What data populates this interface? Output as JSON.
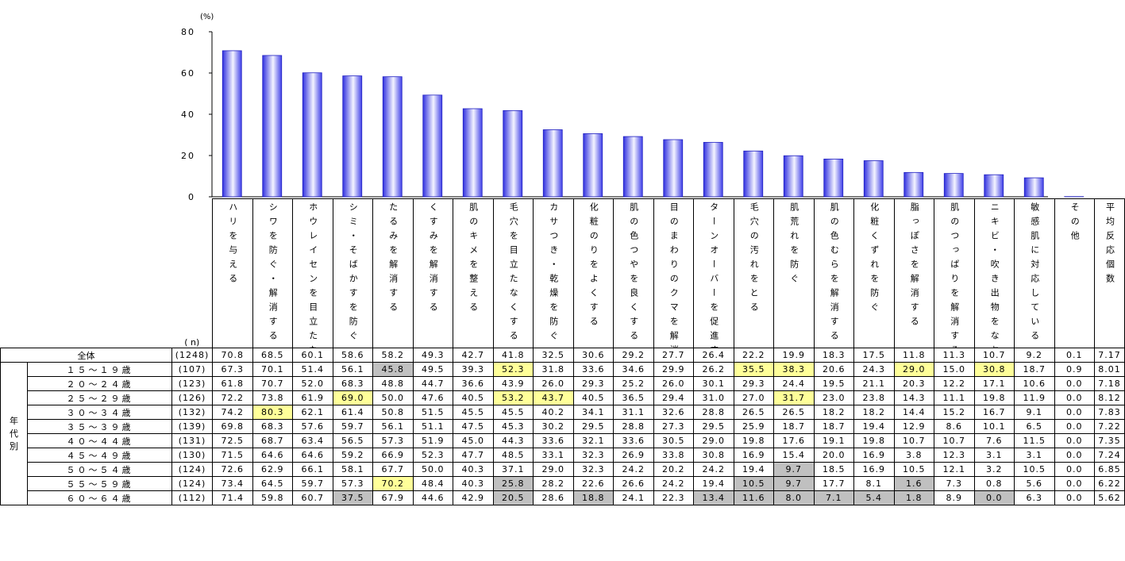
{
  "chart_data": {
    "type": "bar",
    "unit_label": "(%)",
    "yticks": [
      "80",
      "60",
      "40",
      "20",
      "0"
    ],
    "ylim": [
      0,
      80
    ],
    "n_label": "( n)",
    "categories": [
      "ハリを与える",
      "シワを防ぐ・解消する",
      "ホウレイセンを目立たなくする",
      "シミ・そばかすを防ぐ・解消する",
      "たるみを解消する",
      "くすみを解消する",
      "肌のキメを整える",
      "毛穴を目立たなくする",
      "カサつき・乾燥を防ぐ",
      "化粧のりをよくする",
      "肌の色つやを良くする",
      "目のまわりのクマを解消する",
      "ターンオーバーを促進する",
      "毛穴の汚れをとる",
      "肌荒れを防ぐ",
      "肌の色むらを解消する",
      "化粧くずれを防ぐ",
      "脂っぽさを解消する",
      "肌のつっぱりを解消する",
      "ニキビ・吹き出物をなおす",
      "敏感肌に対応している",
      "その他"
    ],
    "header_avg": "平均反応個数",
    "values": [
      70.8,
      68.5,
      60.1,
      58.6,
      58.2,
      49.3,
      42.7,
      41.8,
      32.5,
      30.6,
      29.2,
      27.7,
      26.4,
      22.2,
      19.9,
      18.3,
      17.5,
      11.8,
      11.3,
      10.7,
      9.2,
      0.1
    ],
    "table": {
      "total_label": "全体",
      "group_label": "年代別",
      "rows": [
        {
          "label": "全体",
          "n": "(1248)",
          "vals": [
            "70.8",
            "68.5",
            "60.1",
            "58.6",
            "58.2",
            "49.3",
            "42.7",
            "41.8",
            "32.5",
            "30.6",
            "29.2",
            "27.7",
            "26.4",
            "22.2",
            "19.9",
            "18.3",
            "17.5",
            "11.8",
            "11.3",
            "10.7",
            "9.2",
            "0.1",
            "7.17"
          ],
          "hl": "0000000000000000000000"
        },
        {
          "label": "１５～１９歳",
          "n": "(107)",
          "vals": [
            "67.3",
            "70.1",
            "51.4",
            "56.1",
            "45.8",
            "49.5",
            "39.3",
            "52.3",
            "31.8",
            "33.6",
            "34.6",
            "29.9",
            "26.2",
            "35.5",
            "38.3",
            "20.6",
            "24.3",
            "29.0",
            "15.0",
            "30.8",
            "18.7",
            "0.9",
            "8.01"
          ],
          "hl": "0000L00H00000HH00H0H00"
        },
        {
          "label": "２０～２４歳",
          "n": "(123)",
          "vals": [
            "61.8",
            "70.7",
            "52.0",
            "68.3",
            "48.8",
            "44.7",
            "36.6",
            "43.9",
            "26.0",
            "29.3",
            "25.2",
            "26.0",
            "30.1",
            "29.3",
            "24.4",
            "19.5",
            "21.1",
            "20.3",
            "12.2",
            "17.1",
            "10.6",
            "0.0",
            "7.18"
          ],
          "hl": "0000000000000000000000"
        },
        {
          "label": "２５～２９歳",
          "n": "(126)",
          "vals": [
            "72.2",
            "73.8",
            "61.9",
            "69.0",
            "50.0",
            "47.6",
            "40.5",
            "53.2",
            "43.7",
            "40.5",
            "36.5",
            "29.4",
            "31.0",
            "27.0",
            "31.7",
            "23.0",
            "23.8",
            "14.3",
            "11.1",
            "19.8",
            "11.9",
            "0.0",
            "8.12"
          ],
          "hl": "000H000HH00000H0000000"
        },
        {
          "label": "３０～３４歳",
          "n": "(132)",
          "vals": [
            "74.2",
            "80.3",
            "62.1",
            "61.4",
            "50.8",
            "51.5",
            "45.5",
            "45.5",
            "40.2",
            "34.1",
            "31.1",
            "32.6",
            "28.8",
            "26.5",
            "26.5",
            "18.2",
            "18.2",
            "14.4",
            "15.2",
            "16.7",
            "9.1",
            "0.0",
            "7.83"
          ],
          "hl": "0H00000000000000000000"
        },
        {
          "label": "３５～３９歳",
          "n": "(139)",
          "vals": [
            "69.8",
            "68.3",
            "57.6",
            "59.7",
            "56.1",
            "51.1",
            "47.5",
            "45.3",
            "30.2",
            "29.5",
            "28.8",
            "27.3",
            "29.5",
            "25.9",
            "18.7",
            "18.7",
            "19.4",
            "12.9",
            "8.6",
            "10.1",
            "6.5",
            "0.0",
            "7.22"
          ],
          "hl": "0000000000000000000000"
        },
        {
          "label": "４０～４４歳",
          "n": "(131)",
          "vals": [
            "72.5",
            "68.7",
            "63.4",
            "56.5",
            "57.3",
            "51.9",
            "45.0",
            "44.3",
            "33.6",
            "32.1",
            "33.6",
            "30.5",
            "29.0",
            "19.8",
            "17.6",
            "19.1",
            "19.8",
            "10.7",
            "10.7",
            "7.6",
            "11.5",
            "0.0",
            "7.35"
          ],
          "hl": "0000000000000000000000"
        },
        {
          "label": "４５～４９歳",
          "n": "(130)",
          "vals": [
            "71.5",
            "64.6",
            "64.6",
            "59.2",
            "66.9",
            "52.3",
            "47.7",
            "48.5",
            "33.1",
            "32.3",
            "26.9",
            "33.8",
            "30.8",
            "16.9",
            "15.4",
            "20.0",
            "16.9",
            "3.8",
            "12.3",
            "3.1",
            "3.1",
            "0.0",
            "7.24"
          ],
          "hl": "0000000000000000000000"
        },
        {
          "label": "５０～５４歳",
          "n": "(124)",
          "vals": [
            "72.6",
            "62.9",
            "66.1",
            "58.1",
            "67.7",
            "50.0",
            "40.3",
            "37.1",
            "29.0",
            "32.3",
            "24.2",
            "20.2",
            "24.2",
            "19.4",
            "9.7",
            "18.5",
            "16.9",
            "10.5",
            "12.1",
            "3.2",
            "10.5",
            "0.0",
            "6.85"
          ],
          "hl": "00000000000000L0000000"
        },
        {
          "label": "５５～５９歳",
          "n": "(124)",
          "vals": [
            "73.4",
            "64.5",
            "59.7",
            "57.3",
            "70.2",
            "48.4",
            "40.3",
            "25.8",
            "28.2",
            "22.6",
            "26.6",
            "24.2",
            "19.4",
            "10.5",
            "9.7",
            "17.7",
            "8.1",
            "1.6",
            "7.3",
            "0.8",
            "5.6",
            "0.0",
            "6.22"
          ],
          "hl": "0000H00L00000LL00L0000"
        },
        {
          "label": "６０～６４歳",
          "n": "(112)",
          "vals": [
            "71.4",
            "59.8",
            "60.7",
            "37.5",
            "67.9",
            "44.6",
            "42.9",
            "20.5",
            "28.6",
            "18.8",
            "24.1",
            "22.3",
            "13.4",
            "11.6",
            "8.0",
            "7.1",
            "5.4",
            "1.8",
            "8.9",
            "0.0",
            "6.3",
            "0.0",
            "5.62"
          ],
          "hl": "000L000L0L00LLLLLL0L00"
        }
      ]
    }
  }
}
